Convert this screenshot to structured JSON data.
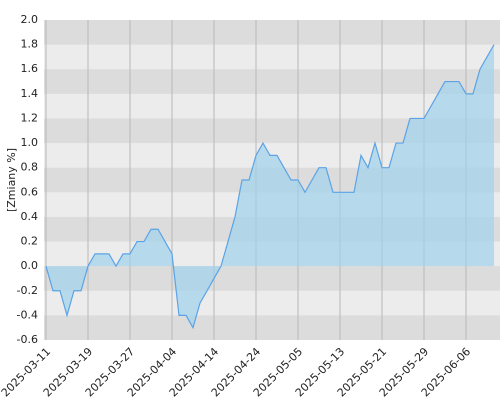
{
  "chart_data": {
    "type": "area",
    "y_label": "[Zmiany %]",
    "categories": [
      "2025-03-11",
      null,
      null,
      null,
      null,
      null,
      "2025-03-19",
      null,
      null,
      null,
      null,
      null,
      "2025-03-27",
      null,
      null,
      null,
      null,
      null,
      "2025-04-04",
      null,
      null,
      null,
      null,
      null,
      "2025-04-14",
      null,
      null,
      null,
      null,
      null,
      "2025-04-24",
      null,
      null,
      null,
      null,
      null,
      "2025-05-05",
      null,
      null,
      null,
      null,
      null,
      "2025-05-13",
      null,
      null,
      null,
      null,
      null,
      "2025-05-21",
      null,
      null,
      null,
      null,
      null,
      "2025-05-29",
      null,
      null,
      null,
      null,
      null,
      "2025-06-06",
      null,
      null,
      null,
      null
    ],
    "values": [
      0,
      -0.2,
      -0.2,
      -0.4,
      -0.2,
      -0.2,
      0,
      0.1,
      0.1,
      0.1,
      0,
      0.1,
      0.1,
      0.2,
      0.2,
      0.3,
      0.3,
      0.2,
      0.1,
      -0.4,
      -0.4,
      -0.5,
      -0.3,
      -0.2,
      -0.1,
      0,
      0.2,
      0.4,
      0.7,
      0.7,
      0.9,
      1.0,
      0.9,
      0.9,
      0.8,
      0.7,
      0.7,
      0.6,
      0.7,
      0.8,
      0.8,
      0.6,
      0.6,
      0.6,
      0.6,
      0.9,
      0.8,
      1.0,
      0.8,
      0.8,
      1.0,
      1.0,
      1.2,
      1.2,
      1.2,
      1.3,
      1.4,
      1.5,
      1.5,
      1.5,
      1.4,
      1.4,
      1.6,
      1.7,
      1.8
    ],
    "color": "#5ba3e6",
    "fill": "#9fd3ec",
    "ylim": [
      -0.6,
      2.0
    ],
    "yticks": [
      {
        "value": -0.6,
        "label": "-0.6"
      },
      {
        "value": -0.4,
        "label": "-0.4"
      },
      {
        "value": -0.2,
        "label": "-0.2"
      },
      {
        "value": 0,
        "label": "0.0"
      },
      {
        "value": 0.2,
        "label": "0.2"
      },
      {
        "value": 0.4,
        "label": "0.4"
      },
      {
        "value": 0.6,
        "label": "0.6"
      },
      {
        "value": 0.8,
        "label": "0.8"
      },
      {
        "value": 1.0,
        "label": "1.0"
      },
      {
        "value": 1.2,
        "label": "1.2"
      },
      {
        "value": 1.4,
        "label": "1.4"
      },
      {
        "value": 1.6,
        "label": "1.6"
      },
      {
        "value": 1.8,
        "label": "1.8"
      },
      {
        "value": 2.0,
        "label": "2.0"
      }
    ],
    "grid": true
  }
}
